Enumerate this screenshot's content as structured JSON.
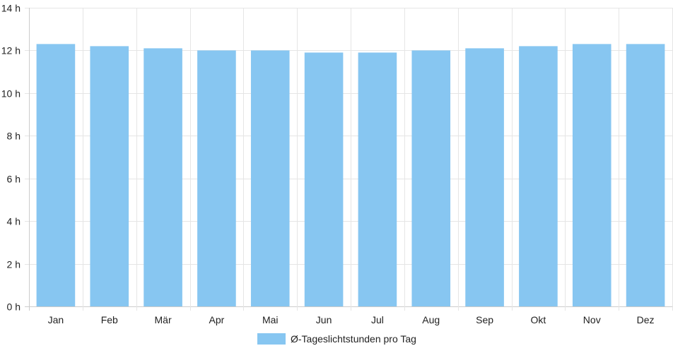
{
  "chart_data": {
    "type": "bar",
    "categories": [
      "Jan",
      "Feb",
      "Mär",
      "Apr",
      "Mai",
      "Jun",
      "Jul",
      "Aug",
      "Sep",
      "Okt",
      "Nov",
      "Dez"
    ],
    "series": [
      {
        "name": "Ø-Tageslichtstunden pro Tag",
        "values": [
          12.3,
          12.2,
          12.1,
          12.0,
          12.0,
          11.9,
          11.9,
          12.0,
          12.1,
          12.2,
          12.3,
          12.3
        ]
      }
    ],
    "ylim": [
      0,
      14
    ],
    "yticks": [
      0,
      2,
      4,
      6,
      8,
      10,
      12,
      14
    ],
    "ytick_suffix": " h",
    "grid": true,
    "legend_position": "bottom",
    "colors": {
      "bar": "#87c6f1",
      "grid": "#e5e5e5",
      "axis": "#cccccc",
      "text": "#222222"
    }
  }
}
